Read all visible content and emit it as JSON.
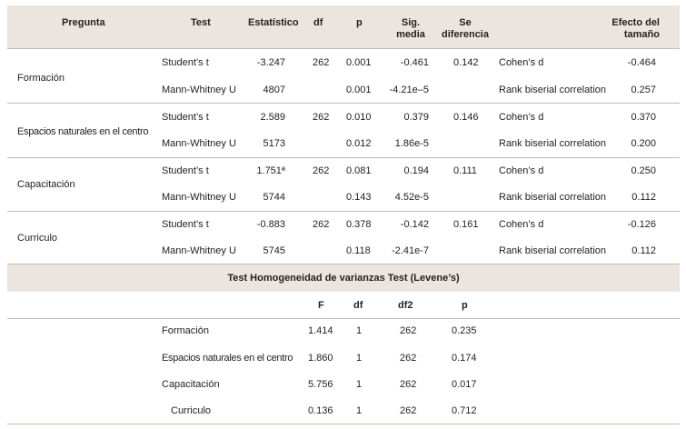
{
  "main_table": {
    "headers": {
      "pregunta": "Pregunta",
      "test": "Test",
      "estadistico": "Estatístico",
      "df": "df",
      "p": "p",
      "sig_media_1": "Sig.",
      "sig_media_2": "media",
      "se_diferencia_1": "Se",
      "se_diferencia_2": "diferencia",
      "efecto_1": "Efecto del",
      "efecto_2": "tamaño"
    },
    "groups": [
      {
        "pregunta": "Formación",
        "rows": [
          {
            "test": "Student’s t",
            "estadistico": "-3.247",
            "df": "262",
            "p": "0.001",
            "sig_media": "-0.461",
            "se_diferencia": "0.142",
            "effect_type": "Cohen’s d",
            "effect": "-0.464"
          },
          {
            "test": "Mann-Whitney U",
            "estadistico": "4807",
            "df": "",
            "p": "0.001",
            "sig_media": "-4.21e–5",
            "se_diferencia": "",
            "effect_type": "Rank biserial correlation",
            "effect": "0.257"
          }
        ]
      },
      {
        "pregunta": "Espacios naturales en el centro",
        "rows": [
          {
            "test": "Student’s t",
            "estadistico": "2.589",
            "df": "262",
            "p": "0.010",
            "sig_media": "0.379",
            "se_diferencia": "0.146",
            "effect_type": "Cohen’s d",
            "effect": "0.370"
          },
          {
            "test": "Mann-Whitney U",
            "estadistico": "5173",
            "df": "",
            "p": "0.012",
            "sig_media": "1.86e-5",
            "se_diferencia": "",
            "effect_type": "Rank biserial correlation",
            "effect": "0.200"
          }
        ]
      },
      {
        "pregunta": "Capacitación",
        "rows": [
          {
            "test": "Student’s t",
            "estadistico": "1.751ª",
            "df": "262",
            "p": "0.081",
            "sig_media": "0.194",
            "se_diferencia": "0.111",
            "effect_type": "Cohen’s d",
            "effect": "0.250"
          },
          {
            "test": "Mann-Whitney U",
            "estadistico": "5744",
            "df": "",
            "p": "0.143",
            "sig_media": "4.52e-5",
            "se_diferencia": "",
            "effect_type": "Rank biserial correlation",
            "effect": "0.112"
          }
        ]
      },
      {
        "pregunta": "Curriculo",
        "rows": [
          {
            "test": "Student’s t",
            "estadistico": "-0.883",
            "df": "262",
            "p": "0.378",
            "sig_media": "-0.142",
            "se_diferencia": "0.161",
            "effect_type": "Cohen’s d",
            "effect": "-0.126"
          },
          {
            "test": "Mann-Whitney U",
            "estadistico": "5745",
            "df": "",
            "p": "0.118",
            "sig_media": "-2.41e-7",
            "se_diferencia": "",
            "effect_type": "Rank biserial correlation",
            "effect": "0.112"
          }
        ]
      }
    ]
  },
  "levene_table": {
    "title": "Test Homogeneidad de varianzas Test (Levene’s)",
    "headers": {
      "f": "F",
      "df": "df",
      "df2": "df2",
      "p": "p"
    },
    "rows": [
      {
        "label": "Formación",
        "f": "1.414",
        "df": "1",
        "df2": "262",
        "p": "0.235"
      },
      {
        "label": "Espacios naturales en el centro",
        "f": "1.860",
        "df": "1",
        "df2": "262",
        "p": "0.174"
      },
      {
        "label": "Capacitación",
        "f": "5.756",
        "df": "1",
        "df2": "262",
        "p": "0.017"
      },
      {
        "label": "Curriculo",
        "f": "0.136",
        "df": "1",
        "df2": "262",
        "p": "0.712"
      }
    ]
  }
}
